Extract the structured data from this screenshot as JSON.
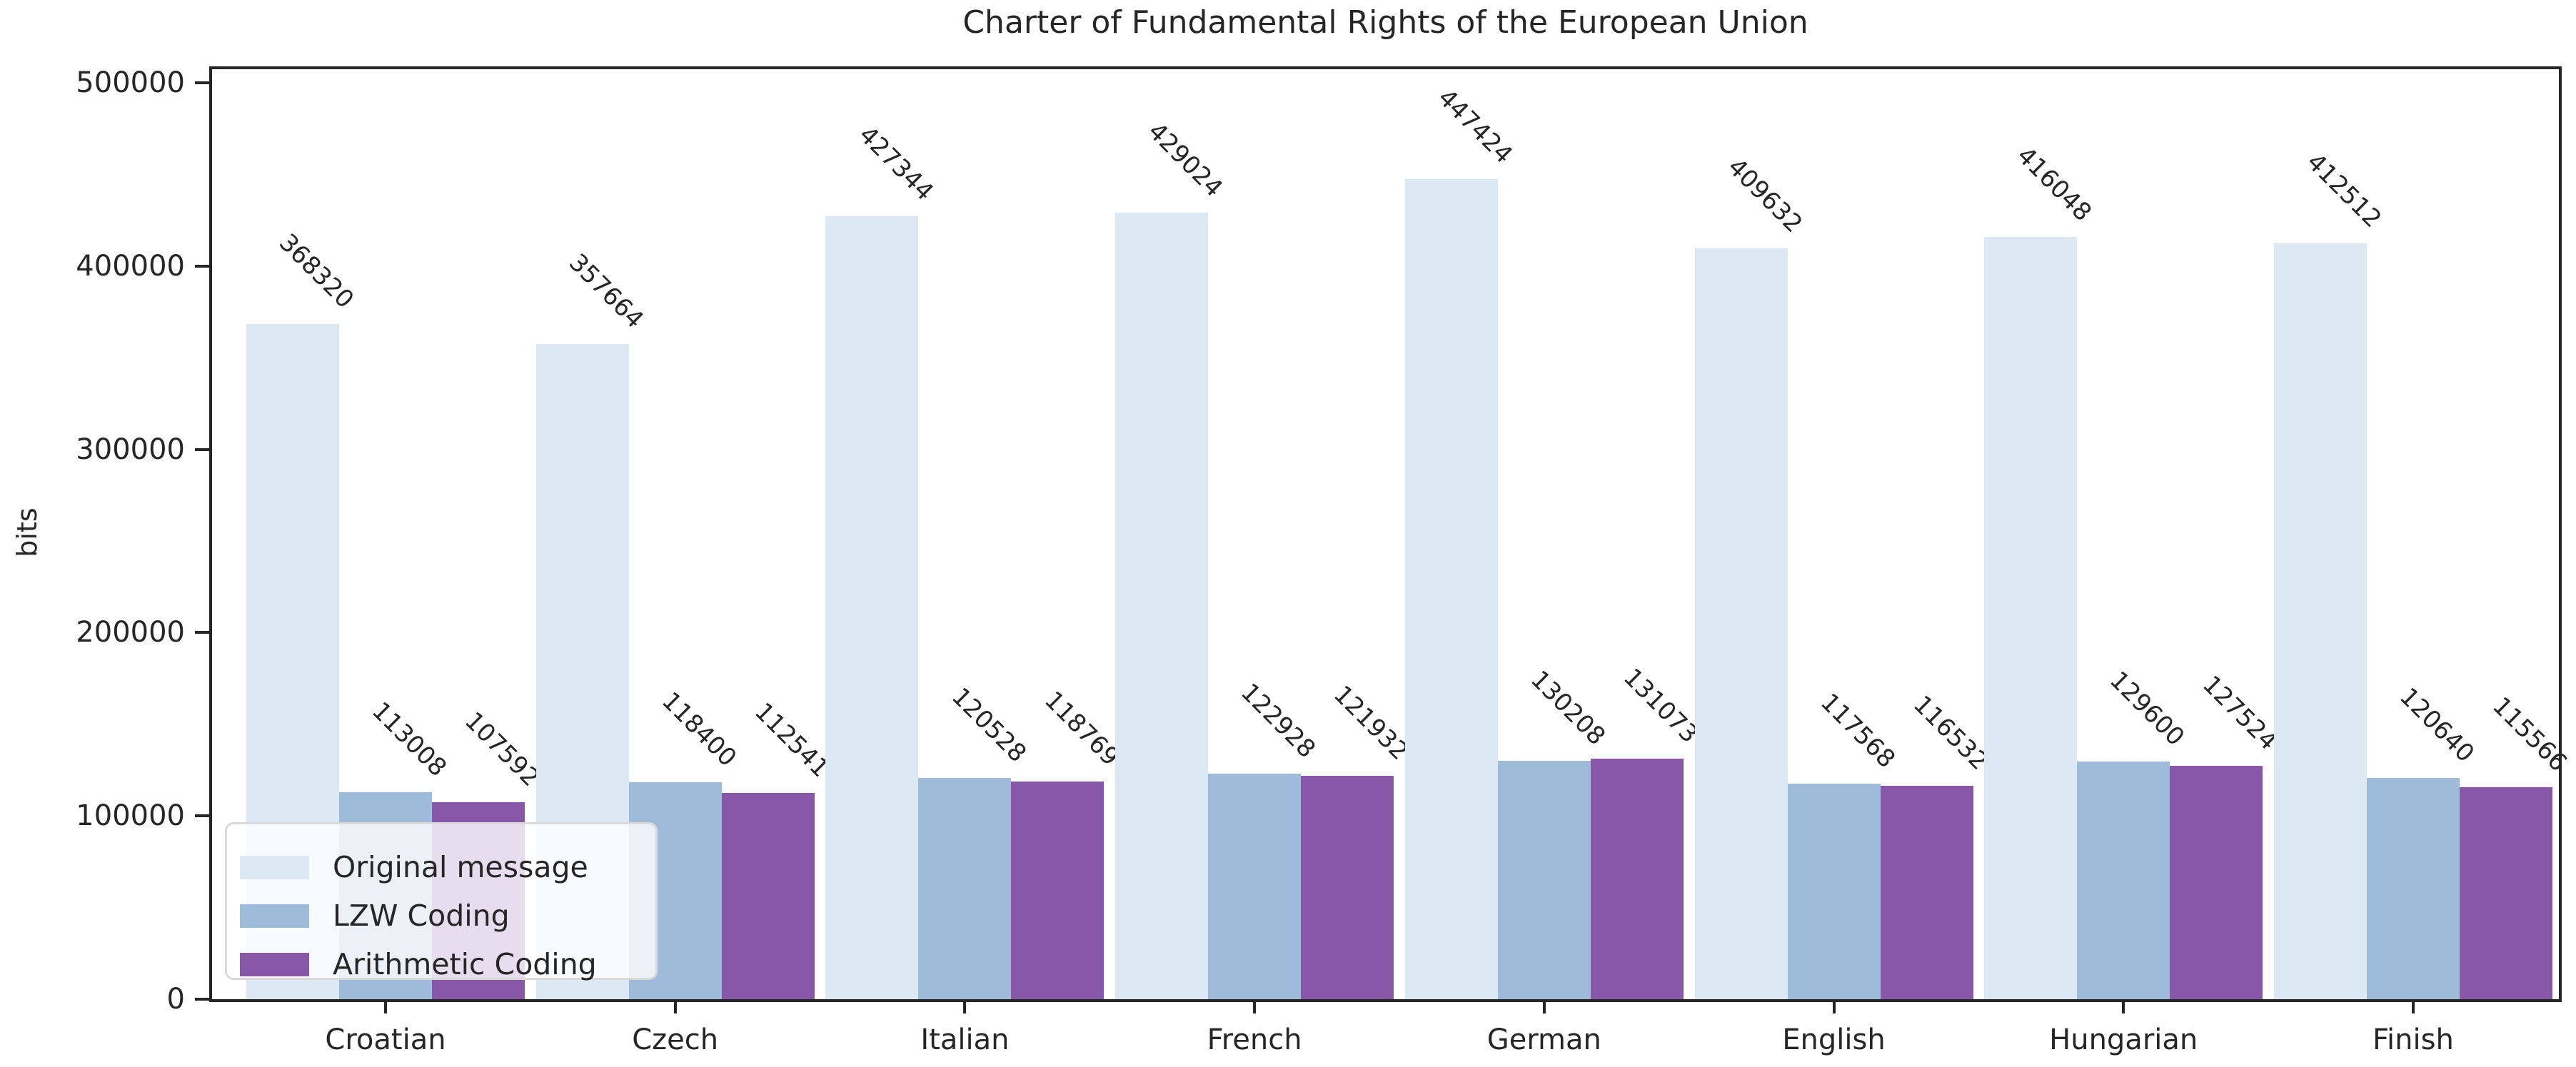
{
  "chart_data": {
    "type": "bar",
    "title": "Charter of Fundamental Rights of the European Union",
    "xlabel": "",
    "ylabel": "bits",
    "categories": [
      "Croatian",
      "Czech",
      "Italian",
      "French",
      "German",
      "English",
      "Hungarian",
      "Finish"
    ],
    "series": [
      {
        "name": "Original message",
        "color": "#dce9f4",
        "values": [
          368320,
          357664,
          427344,
          429024,
          447424,
          409632,
          416048,
          412512
        ]
      },
      {
        "name": "LZW Coding",
        "color": "#9fbbda",
        "values": [
          113008,
          118400,
          120528,
          122928,
          130208,
          117568,
          129600,
          120640
        ]
      },
      {
        "name": "Arithmetic Coding",
        "color": "#8857a8",
        "values": [
          107592,
          112541,
          118769,
          121932,
          131073,
          116532,
          127524,
          115566
        ]
      }
    ],
    "ylim": [
      0,
      500000
    ],
    "yticks": [
      0,
      100000,
      200000,
      300000,
      400000,
      500000
    ],
    "bar_value_labels_rotation_deg": 45,
    "legend_position": "lower left",
    "grid": false
  },
  "colors": {
    "text": "#262626",
    "axis": "#262626",
    "legend_border": "#d9d9d9",
    "legend_background": "rgba(255,255,255,0.8)"
  }
}
